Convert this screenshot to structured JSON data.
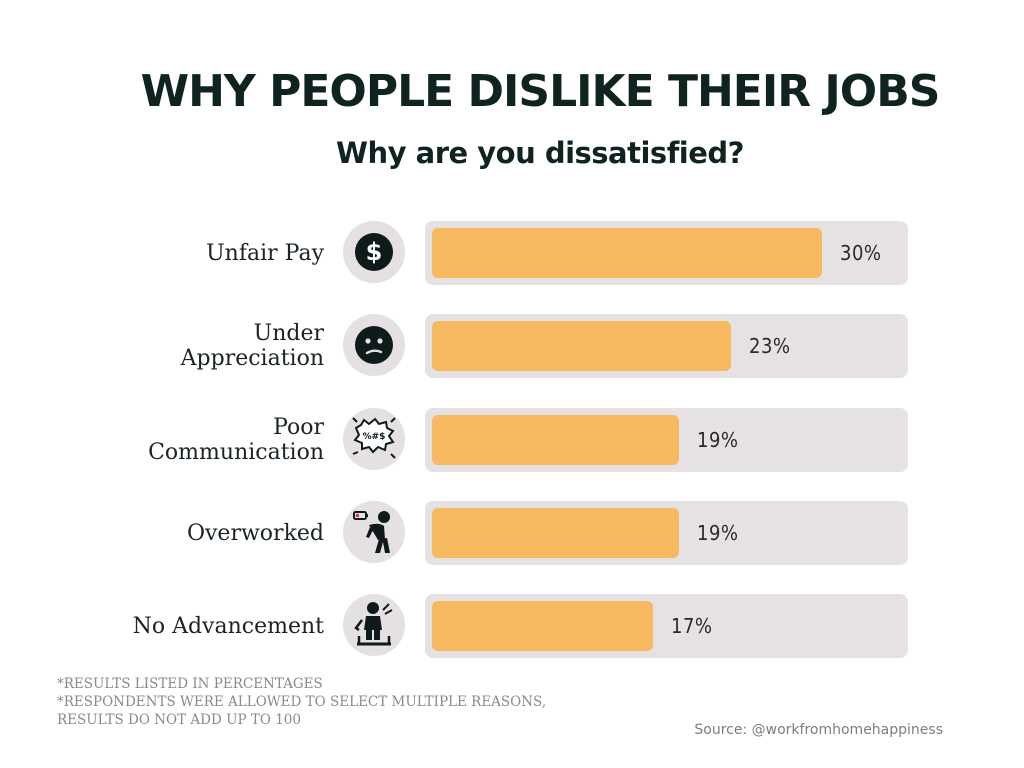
{
  "title": "WHY PEOPLE DISLIKE THEIR JOBS",
  "subtitle": "Why are you dissatisfied?",
  "chart_data": {
    "type": "bar",
    "orientation": "horizontal",
    "title": "WHY PEOPLE DISLIKE THEIR JOBS",
    "subtitle": "Why are you dissatisfied?",
    "categories": [
      "Unfair Pay",
      "Under\nAppreciation",
      "Poor\nCommunication",
      "Overworked",
      "No Advancement"
    ],
    "values": [
      30,
      23,
      19,
      19,
      17
    ],
    "value_labels": [
      "30%",
      "23%",
      "19%",
      "19%",
      "17%"
    ],
    "icons": [
      "dollar-icon",
      "frown-face-icon",
      "cursing-speech-bubble-icon",
      "tired-worker-icon",
      "stuck-worker-icon"
    ],
    "xlim": [
      0,
      34
    ],
    "grid": false,
    "bar_color": "#f6b960",
    "track_color": "#e6e1e3"
  },
  "footnotes": [
    "*RESULTS LISTED IN PERCENTAGES",
    "*RESPONDENTS WERE ALLOWED TO SELECT MULTIPLE REASONS,",
    "RESULTS DO NOT ADD UP TO 100"
  ],
  "source": "Source: @workfromhomehappiness"
}
